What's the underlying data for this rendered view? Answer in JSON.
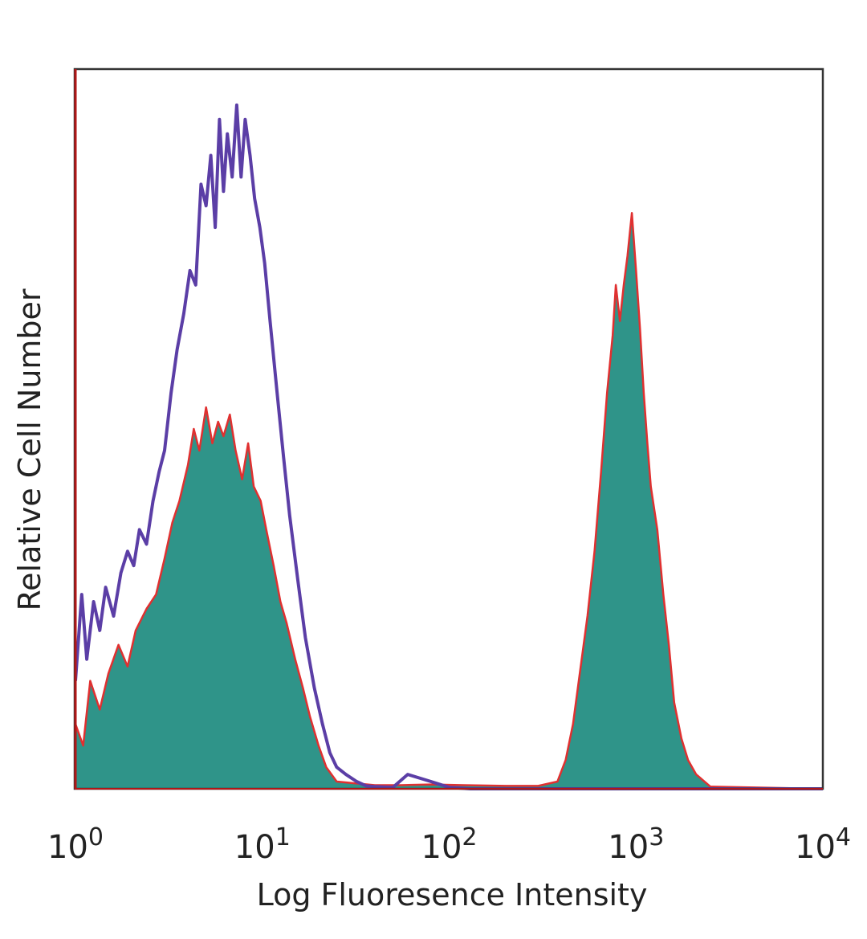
{
  "chart_data": {
    "type": "area",
    "xscale": "log",
    "xlim": [
      1,
      10000
    ],
    "ylim": [
      0,
      1
    ],
    "grid": false,
    "legend": "none",
    "xlabel": "Log Fluoresence Intensity",
    "ylabel": "Relative Cell Number",
    "x_ticks": [
      {
        "value": 1,
        "base": "10",
        "exp": "0"
      },
      {
        "value": 10,
        "base": "10",
        "exp": "1"
      },
      {
        "value": 100,
        "base": "10",
        "exp": "2"
      },
      {
        "value": 1000,
        "base": "10",
        "exp": "3"
      },
      {
        "value": 10000,
        "base": "10",
        "exp": "4"
      }
    ],
    "series": [
      {
        "style": "filled",
        "color": "#2f9489",
        "outline": "#e03030",
        "x": [
          1,
          1.1,
          1.2,
          1.35,
          1.5,
          1.7,
          1.9,
          2.1,
          2.4,
          2.7,
          3.0,
          3.3,
          3.6,
          4.0,
          4.3,
          4.6,
          5.0,
          5.4,
          5.8,
          6.2,
          6.7,
          7.2,
          7.8,
          8.4,
          9.0,
          9.8,
          10.5,
          11.5,
          12.5,
          13.5,
          15,
          16.5,
          18,
          20,
          22,
          25,
          30,
          40,
          55,
          80,
          120,
          200,
          300,
          380,
          420,
          460,
          500,
          550,
          600,
          650,
          700,
          750,
          780,
          820,
          860,
          900,
          950,
          1000,
          1050,
          1100,
          1150,
          1200,
          1300,
          1400,
          1500,
          1600,
          1750,
          1900,
          2100,
          2500,
          10000
        ],
        "y": [
          0.09,
          0.06,
          0.15,
          0.11,
          0.16,
          0.2,
          0.17,
          0.22,
          0.25,
          0.27,
          0.32,
          0.37,
          0.4,
          0.45,
          0.5,
          0.47,
          0.53,
          0.48,
          0.51,
          0.49,
          0.52,
          0.47,
          0.43,
          0.48,
          0.42,
          0.4,
          0.36,
          0.31,
          0.26,
          0.23,
          0.18,
          0.14,
          0.1,
          0.06,
          0.03,
          0.01,
          0.008,
          0.005,
          0.005,
          0.006,
          0.005,
          0.004,
          0.004,
          0.01,
          0.04,
          0.09,
          0.16,
          0.24,
          0.33,
          0.44,
          0.55,
          0.63,
          0.7,
          0.65,
          0.7,
          0.74,
          0.8,
          0.72,
          0.64,
          0.55,
          0.48,
          0.42,
          0.36,
          0.27,
          0.2,
          0.12,
          0.07,
          0.04,
          0.02,
          0.003,
          0
        ]
      },
      {
        "style": "line",
        "color": "#5b3ea6",
        "x": [
          1,
          1.08,
          1.15,
          1.25,
          1.35,
          1.45,
          1.6,
          1.75,
          1.9,
          2.05,
          2.2,
          2.4,
          2.6,
          2.8,
          3.0,
          3.25,
          3.5,
          3.8,
          4.1,
          4.4,
          4.7,
          5.0,
          5.3,
          5.6,
          5.9,
          6.2,
          6.5,
          6.9,
          7.3,
          7.7,
          8.1,
          8.6,
          9.1,
          9.7,
          10.3,
          11,
          12,
          13,
          14,
          15.5,
          17,
          19,
          21,
          23,
          25,
          28,
          32,
          36,
          40,
          50,
          60,
          80,
          100,
          130,
          160,
          10000
        ],
        "y": [
          0.15,
          0.27,
          0.18,
          0.26,
          0.22,
          0.28,
          0.24,
          0.3,
          0.33,
          0.31,
          0.36,
          0.34,
          0.4,
          0.44,
          0.47,
          0.55,
          0.61,
          0.66,
          0.72,
          0.7,
          0.84,
          0.81,
          0.88,
          0.78,
          0.93,
          0.83,
          0.91,
          0.85,
          0.95,
          0.85,
          0.93,
          0.88,
          0.82,
          0.78,
          0.73,
          0.65,
          0.55,
          0.46,
          0.38,
          0.29,
          0.21,
          0.14,
          0.09,
          0.05,
          0.03,
          0.02,
          0.01,
          0.004,
          0.003,
          0.002,
          0.02,
          0.01,
          0.002,
          0.0,
          0.0,
          0.0
        ]
      }
    ]
  }
}
